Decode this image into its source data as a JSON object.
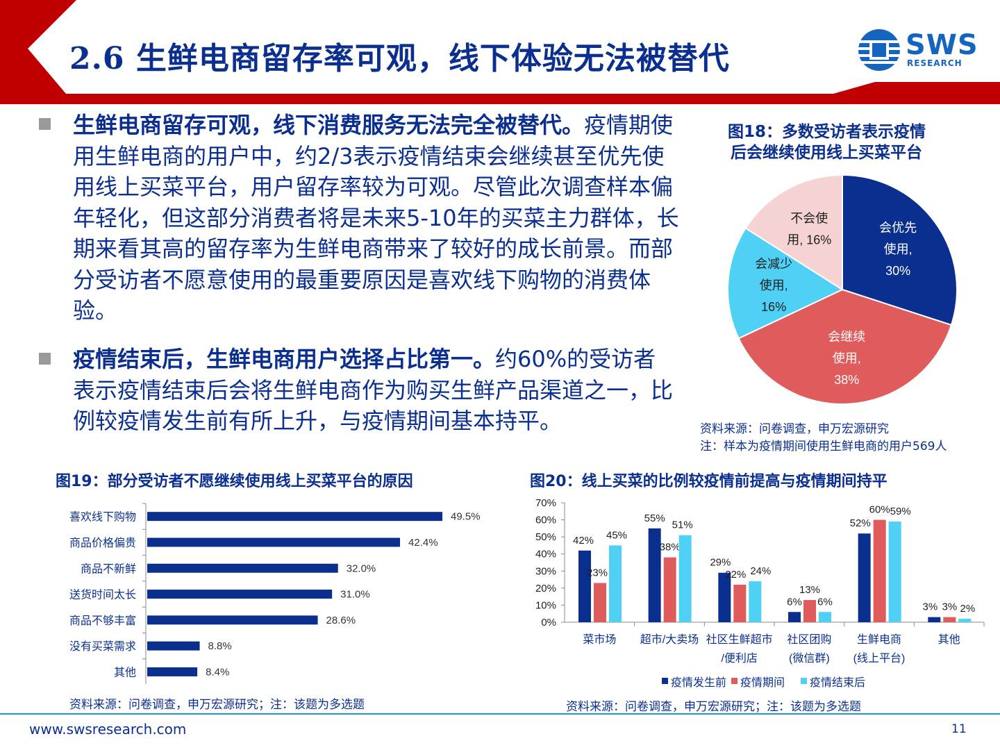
{
  "header": {
    "title": "2.6 生鲜电商留存率可观，线下体验无法被替代",
    "logo_text": "SWS",
    "logo_sub": "RESEARCH"
  },
  "bullets": [
    {
      "bold": "生鲜电商留存可观，线下消费服务无法完全被替代。",
      "text": "疫情期使用生鲜电商的用户中，约2/3表示疫情结束会继续甚至优先使用线上买菜平台，用户留存率较为可观。尽管此次调查样本偏年轻化，但这部分消费者将是未来5-10年的买菜主力群体，长期来看其高的留存率为生鲜电商带来了较好的成长前景。而部分受访者不愿意使用的最重要原因是喜欢线下购物的消费体验。"
    },
    {
      "bold": "疫情结束后，生鲜电商用户选择占比第一。",
      "text": "约60%的受访者表示疫情结束后会将生鲜电商作为购买生鲜产品渠道之一，比例较疫情发生前有所上升，与疫情期间基本持平。"
    }
  ],
  "fig18": {
    "title_line1": "图18：多数受访者表示疫情",
    "title_line2": "后会继续使用线上买菜平台",
    "source": "资料来源：问卷调查，申万宏源研究",
    "note": "注：样本为疫情期间使用生鲜电商的用户569人"
  },
  "fig19": {
    "title": "图19：部分受访者不愿继续使用线上买菜平台的原因",
    "source": "资料来源：问卷调查，申万宏源研究；注：该题为多选题"
  },
  "fig20": {
    "title": "图20：线上买菜的比例较疫情前提高与疫情期间持平",
    "source": "资料来源：问卷调查，申万宏源研究；注：该题为多选题"
  },
  "footer": {
    "website": "www.swsresearch.com",
    "page": "11"
  },
  "colors": {
    "navy": "#0b2f8f",
    "red": "#e05b5b",
    "cyan": "#4fd0f5",
    "pink": "#f6d3d3",
    "banner_red": "#c00000"
  },
  "chart_data": [
    {
      "type": "pie",
      "labels": [
        [
          "会优先",
          "使用,",
          "30%"
        ],
        [
          "会继续",
          "使用,",
          "38%"
        ],
        [
          "会减少",
          "使用,",
          "16%"
        ],
        [
          "不会使",
          "用, 16%"
        ]
      ],
      "values": [
        30,
        38,
        16,
        16
      ],
      "colors": [
        "#0b2f8f",
        "#e05b5b",
        "#4fd0f5",
        "#f6d3d3"
      ]
    },
    {
      "type": "bar",
      "orientation": "horizontal",
      "categories": [
        "喜欢线下购物",
        "商品价格偏贵",
        "商品不新鲜",
        "送货时间太长",
        "商品不够丰富",
        "没有买菜需求",
        "其他"
      ],
      "values": [
        49.5,
        42.4,
        32.0,
        31.0,
        28.6,
        8.8,
        8.4
      ],
      "value_labels": [
        "49.5%",
        "42.4%",
        "32.0%",
        "31.0%",
        "28.6%",
        "8.8%",
        "8.4%"
      ]
    },
    {
      "type": "bar",
      "categories": [
        [
          "菜市场"
        ],
        [
          "超市/大卖场"
        ],
        [
          "社区生鲜超市",
          "/便利店"
        ],
        [
          "社区团购",
          "(微信群)"
        ],
        [
          "生鲜电商",
          "(线上平台)"
        ],
        [
          "其他"
        ]
      ],
      "series": [
        {
          "name": "疫情发生前",
          "values": [
            42,
            55,
            29,
            6,
            52,
            3
          ],
          "labels": [
            "42%",
            "55%",
            "29%",
            "6%",
            "52%",
            "3%"
          ]
        },
        {
          "name": "疫情期间",
          "values": [
            23,
            38,
            22,
            13,
            60,
            3
          ],
          "labels": [
            "23%",
            "38%",
            "22%",
            "13%",
            "60%",
            "3%"
          ]
        },
        {
          "name": "疫情结束后",
          "values": [
            45,
            51,
            24,
            6,
            59,
            2
          ],
          "labels": [
            "45%",
            "51%",
            "24%",
            "6%",
            "59%",
            "2%"
          ]
        }
      ],
      "ylim": [
        0,
        70
      ],
      "yticks": [
        "0%",
        "10%",
        "20%",
        "30%",
        "40%",
        "50%",
        "60%",
        "70%"
      ]
    }
  ]
}
